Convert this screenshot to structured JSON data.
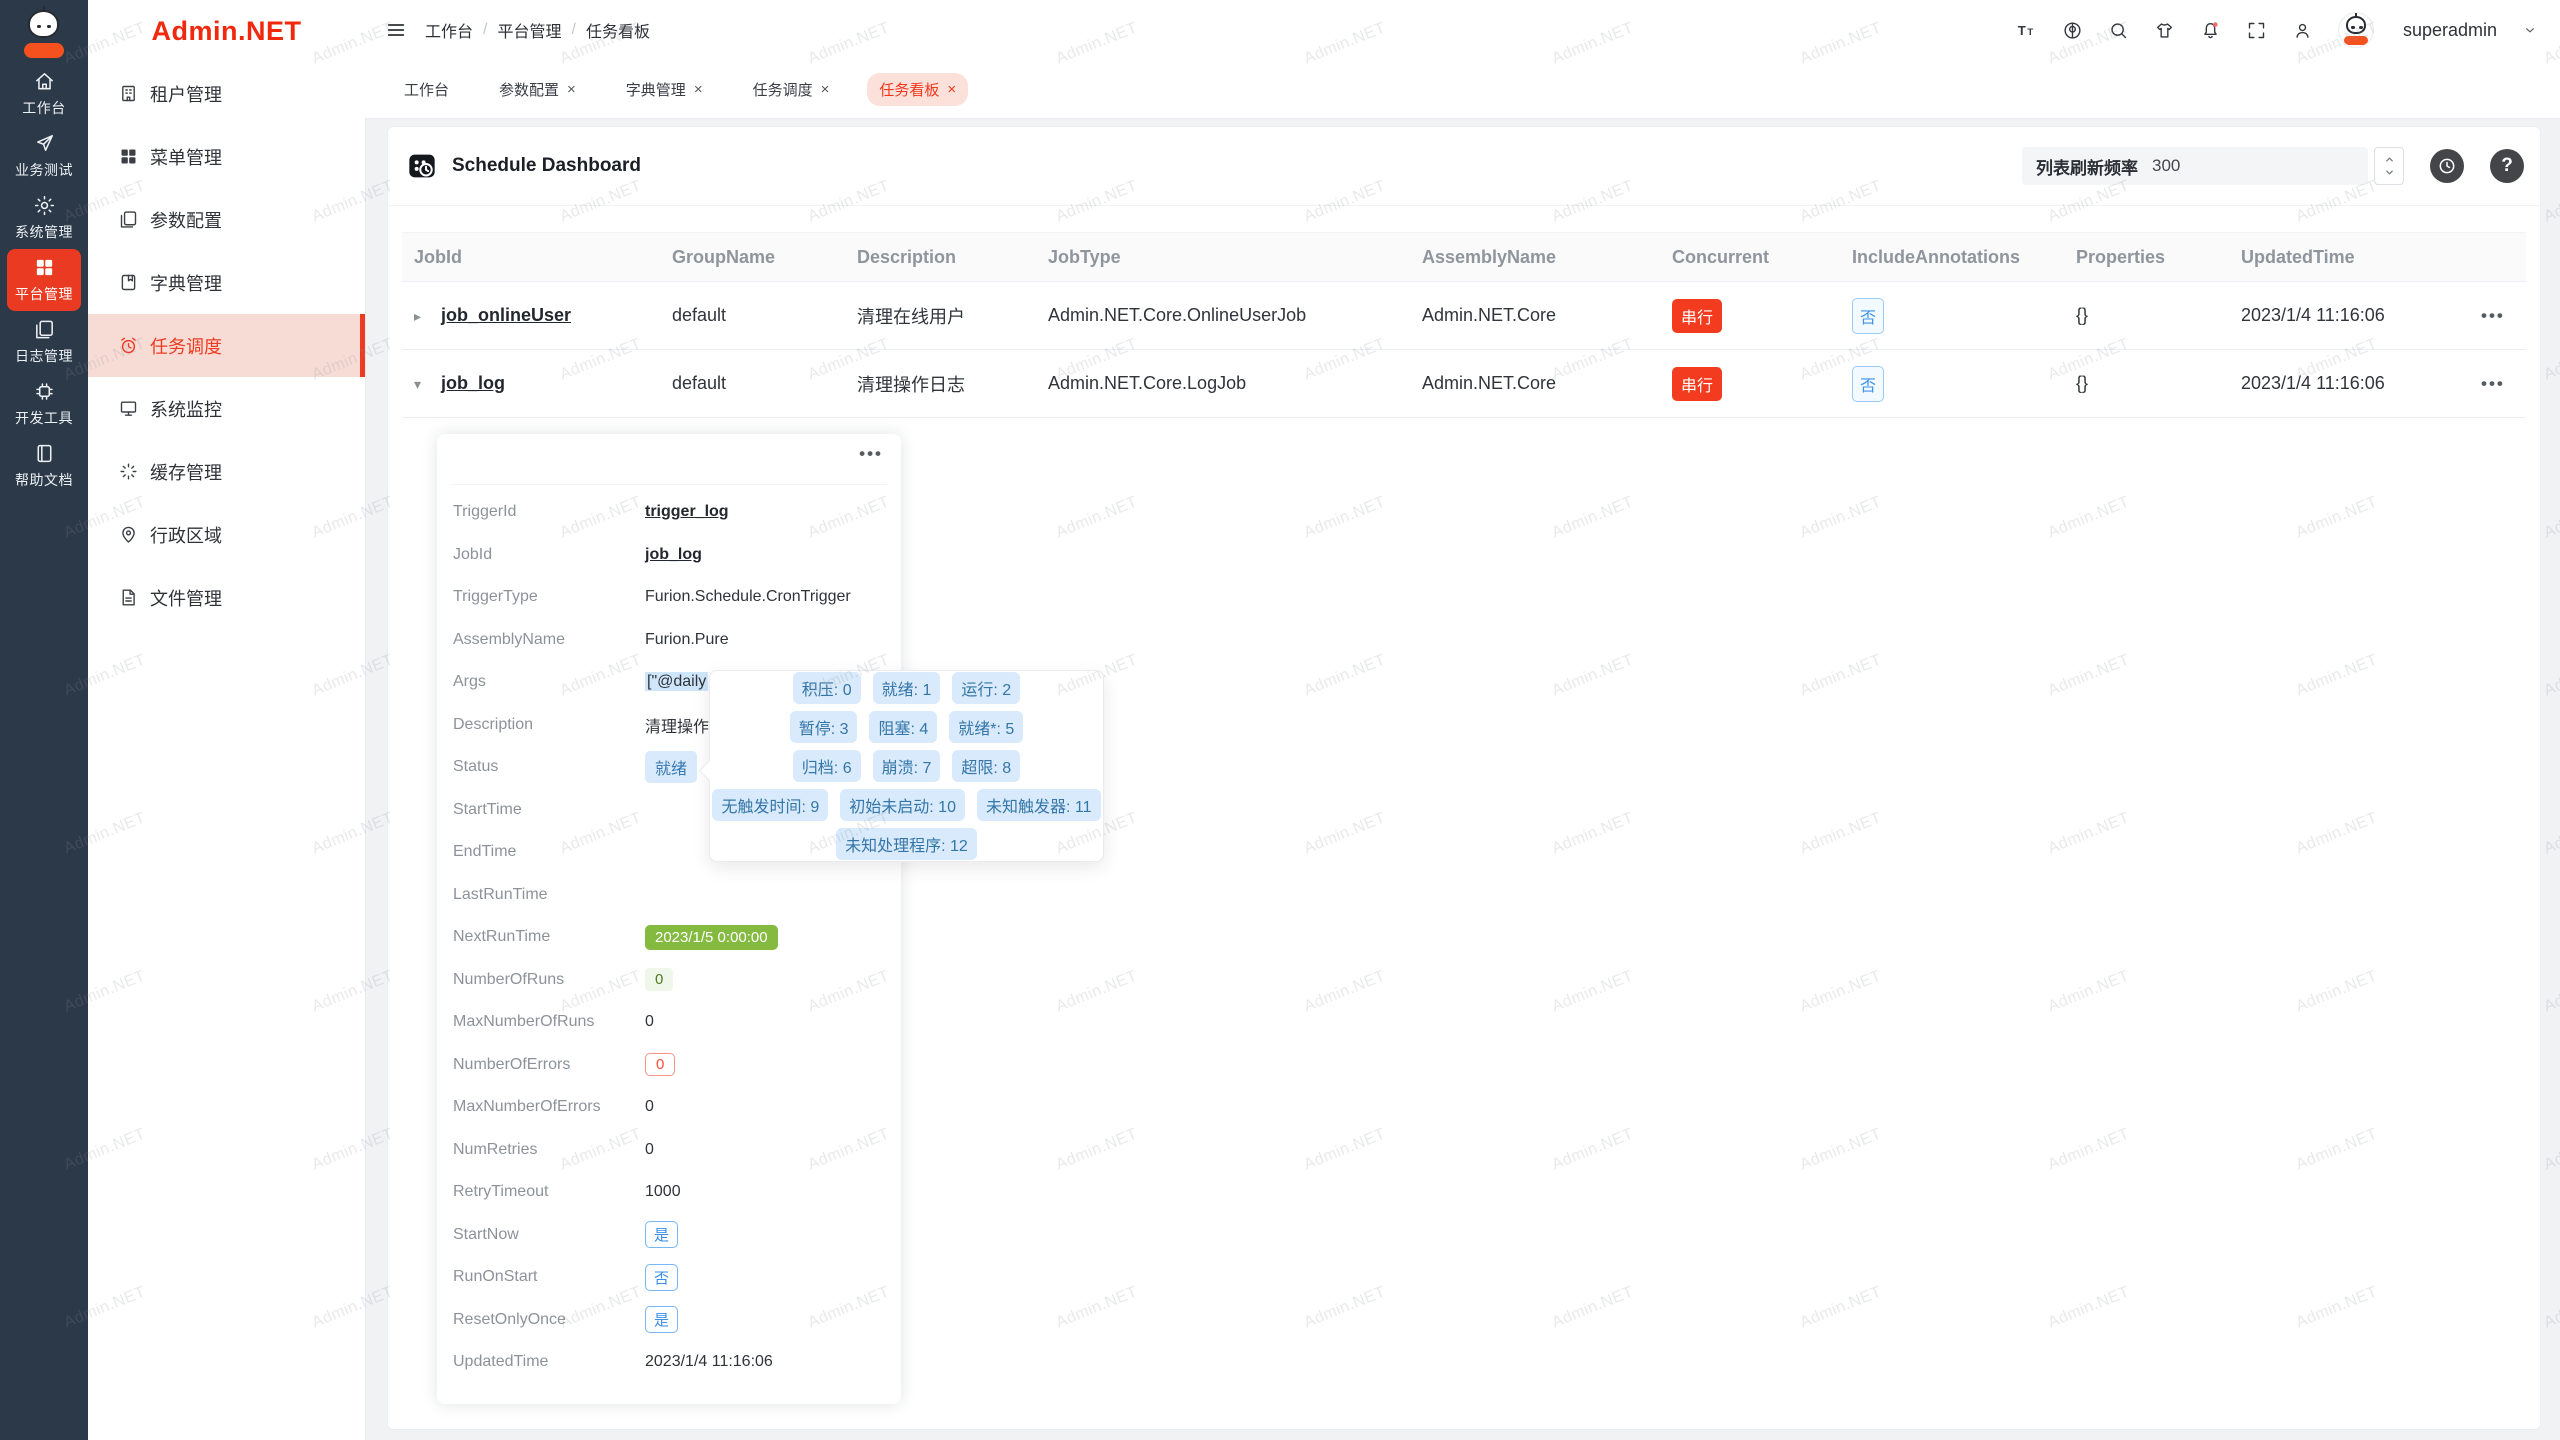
{
  "brand": {
    "logo_text": "Admin.NET",
    "watermark_text": "Admin.NET"
  },
  "colors": {
    "primary_red": "#f0371c",
    "rail_bg": "#2b3949",
    "rail_active": "#ea3b22",
    "tag_info_bg": "#d8eafb",
    "tag_info_text": "#3a79b3",
    "tag_green_solid": "#85ba41",
    "danger_badge": "#f33b20",
    "link_blue": "#3d93ea"
  },
  "rail": {
    "items": [
      {
        "label": "工作台",
        "icon": "home",
        "state": ""
      },
      {
        "label": "业务测试",
        "icon": "send",
        "state": ""
      },
      {
        "label": "系统管理",
        "icon": "gear",
        "state": ""
      },
      {
        "label": "平台管理",
        "icon": "grid",
        "state": "active"
      },
      {
        "label": "日志管理",
        "icon": "copy",
        "state": ""
      },
      {
        "label": "开发工具",
        "icon": "chip",
        "state": ""
      },
      {
        "label": "帮助文档",
        "icon": "book",
        "state": ""
      }
    ]
  },
  "sidebar": {
    "items": [
      {
        "label": "租户管理",
        "icon": "building",
        "state": ""
      },
      {
        "label": "菜单管理",
        "icon": "grid",
        "state": ""
      },
      {
        "label": "参数配置",
        "icon": "copy",
        "state": ""
      },
      {
        "label": "字典管理",
        "icon": "bookmark",
        "state": ""
      },
      {
        "label": "任务调度",
        "icon": "alarm",
        "state": "active"
      },
      {
        "label": "系统监控",
        "icon": "monitor",
        "state": ""
      },
      {
        "label": "缓存管理",
        "icon": "spinner",
        "state": ""
      },
      {
        "label": "行政区域",
        "icon": "pin",
        "state": ""
      },
      {
        "label": "文件管理",
        "icon": "file",
        "state": ""
      }
    ]
  },
  "topbar": {
    "breadcrumb": [
      {
        "label": "工作台",
        "sep": "/"
      },
      {
        "label": "平台管理",
        "sep": "/"
      },
      {
        "label": "任务看板",
        "sep": ""
      }
    ],
    "icons": [
      {
        "name": "font-size-icon",
        "icon": "fontsize"
      },
      {
        "name": "language-icon",
        "icon": "lang"
      },
      {
        "name": "search-icon",
        "icon": "search"
      },
      {
        "name": "theme-icon",
        "icon": "shirt"
      },
      {
        "name": "notification-icon",
        "icon": "bell"
      },
      {
        "name": "fullscreen-icon",
        "icon": "fullscreen"
      },
      {
        "name": "profile-icon",
        "icon": "person"
      }
    ],
    "username": "superadmin"
  },
  "tabs": [
    {
      "label": "工作台",
      "closable": false,
      "state": ""
    },
    {
      "label": "参数配置",
      "closable": true,
      "state": ""
    },
    {
      "label": "字典管理",
      "closable": true,
      "state": ""
    },
    {
      "label": "任务调度",
      "closable": true,
      "state": ""
    },
    {
      "label": "任务看板",
      "closable": true,
      "state": "active"
    }
  ],
  "panel": {
    "title": "Schedule Dashboard",
    "refresh_label": "列表刷新频率",
    "refresh_value": "300",
    "more": "•••"
  },
  "table": {
    "columns": [
      "JobId",
      "GroupName",
      "Description",
      "JobType",
      "AssemblyName",
      "Concurrent",
      "IncludeAnnotations",
      "Properties",
      "UpdatedTime",
      ""
    ],
    "rows": [
      {
        "caret": "▸",
        "jobId": "job_onlineUser",
        "group": "default",
        "desc": "清理在线用户",
        "jobType": "Admin.NET.Core.OnlineUserJob",
        "assembly": "Admin.NET.Core",
        "concurrent": "串行",
        "include": "否",
        "props": "{}",
        "updated": "2023/1/4 11:16:06",
        "actions": "•••"
      },
      {
        "caret": "▾",
        "jobId": "job_log",
        "group": "default",
        "desc": "清理操作日志",
        "jobType": "Admin.NET.Core.LogJob",
        "assembly": "Admin.NET.Core",
        "concurrent": "串行",
        "include": "否",
        "props": "{}",
        "updated": "2023/1/4 11:16:06",
        "actions": "•••"
      }
    ]
  },
  "detail": {
    "more": "•••",
    "rows": [
      {
        "label": "TriggerId",
        "value": "trigger_log",
        "type": "link"
      },
      {
        "label": "JobId",
        "value": "job_log",
        "type": "link"
      },
      {
        "label": "TriggerType",
        "value": "Furion.Schedule.CronTrigger",
        "type": "text"
      },
      {
        "label": "AssemblyName",
        "value": "Furion.Pure",
        "type": "text"
      },
      {
        "label": "Args",
        "value": "[\"@daily",
        "type": "args"
      },
      {
        "label": "Description",
        "value": "清理操作日志",
        "type": "text"
      },
      {
        "label": "Status",
        "value": "就绪",
        "type": "info"
      },
      {
        "label": "StartTime",
        "value": "",
        "type": "empty"
      },
      {
        "label": "EndTime",
        "value": "",
        "type": "empty"
      },
      {
        "label": "LastRunTime",
        "value": "",
        "type": "empty"
      },
      {
        "label": "NextRunTime",
        "value": "2023/1/5 0:00:00",
        "type": "green"
      },
      {
        "label": "NumberOfRuns",
        "value": "0",
        "type": "greenlight"
      },
      {
        "label": "MaxNumberOfRuns",
        "value": "0",
        "type": "text"
      },
      {
        "label": "NumberOfErrors",
        "value": "0",
        "type": "redline"
      },
      {
        "label": "MaxNumberOfErrors",
        "value": "0",
        "type": "text"
      },
      {
        "label": "NumRetries",
        "value": "0",
        "type": "text"
      },
      {
        "label": "RetryTimeout",
        "value": "1000",
        "type": "text"
      },
      {
        "label": "StartNow",
        "value": "是",
        "type": "blueline"
      },
      {
        "label": "RunOnStart",
        "value": "否",
        "type": "blueline"
      },
      {
        "label": "ResetOnlyOnce",
        "value": "是",
        "type": "blueline"
      },
      {
        "label": "UpdatedTime",
        "value": "2023/1/4 11:16:06",
        "type": "text"
      }
    ]
  },
  "tooltip": {
    "row1": [
      "积压: 0",
      "就绪: 1",
      "运行: 2"
    ],
    "row2": [
      "暂停: 3",
      "阻塞: 4",
      "就绪*: 5"
    ],
    "row3": [
      "归档: 6",
      "崩溃: 7",
      "超限: 8"
    ],
    "row4": [
      "无触发时间: 9",
      "初始未启动: 10",
      "未知触发器: 11"
    ],
    "row5": [
      "未知处理程序: 12"
    ]
  }
}
